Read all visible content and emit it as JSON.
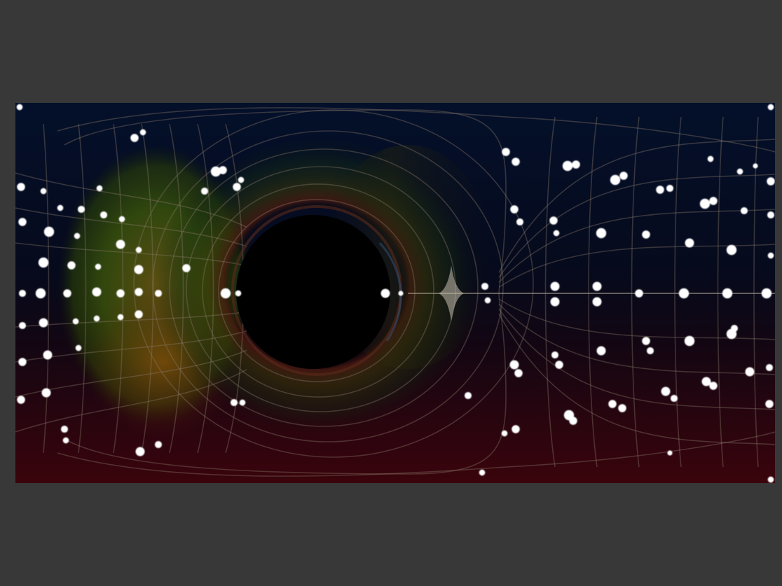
{
  "scene": {
    "kind": "black hole lensing render",
    "background_color": "#383838",
    "sky_top_color": "#04102a",
    "sky_bottom_color": "#3a040c",
    "glow_green": "#2f5a06",
    "glow_orange": "#7a3a08",
    "shadow_color": "#000000",
    "grid_line_color": "#8a7a6a",
    "star_color": "#ffffff"
  }
}
